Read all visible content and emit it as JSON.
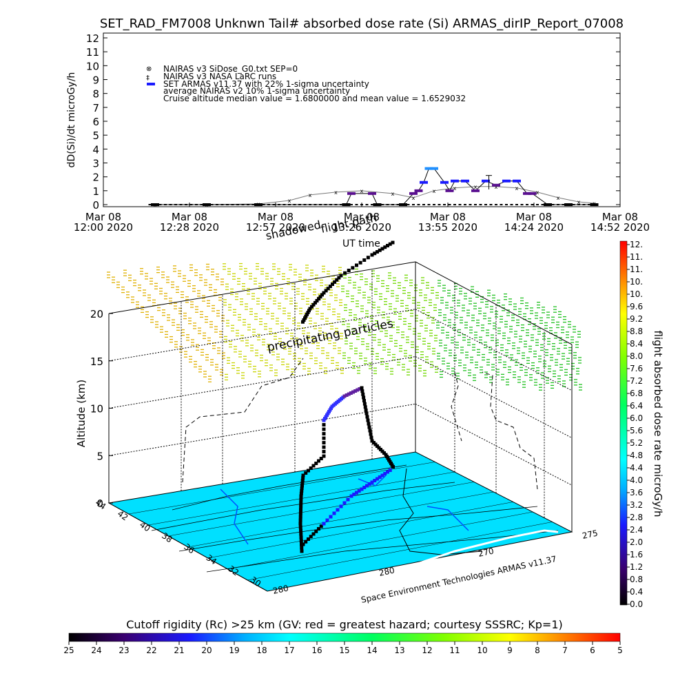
{
  "title": "SET_RAD_FM7008  Unknwn Tail#  absorbed dose rate (Si) ARMAS_dirIP_Report_07008",
  "chart_data": [
    {
      "type": "line",
      "ylabel": "dD(Si)/dt microGy/h",
      "ylim": [
        0,
        12
      ],
      "yticks": [
        "0",
        "1",
        "2",
        "3",
        "4",
        "5",
        "6",
        "7",
        "8",
        "9",
        "10",
        "11",
        "12"
      ],
      "xticks": [
        {
          "d": "Mar 08",
          "t": "12:00 2020"
        },
        {
          "d": "Mar 08",
          "t": "12:28 2020"
        },
        {
          "d": "Mar 08",
          "t": "12:57 2020"
        },
        {
          "d": "Mar 08",
          "t": "13:26 2020"
        },
        {
          "d": "Mar 08",
          "t": "13:55 2020"
        },
        {
          "d": "Mar 08",
          "t": "14:24 2020"
        },
        {
          "d": "Mar 08",
          "t": "14:52 2020"
        }
      ],
      "legend": [
        "NAIRAS v3 SiDose_G0.txt SEP=0",
        "NAIRAS v3 NASA LaRC runs",
        "SET ARMAS v11.37 with 22% 1-sigma uncertainty",
        "average NAIRAS v2 10% 1-sigma uncertainty",
        "Cruise altitude median value =    1.6800000 and mean value =    1.6529032"
      ],
      "series": [
        {
          "name": "NAIRAS v3 SiDose_G0.txt SEP=0",
          "x": [
            0.1,
            0.2,
            0.3,
            0.36,
            0.4,
            0.45,
            0.5,
            0.56,
            0.6,
            0.64,
            0.68,
            0.72,
            0.76,
            0.8,
            0.84,
            0.88,
            0.92,
            0.95
          ],
          "y": [
            0.0,
            0.0,
            0.05,
            0.3,
            0.7,
            0.9,
            1.0,
            0.8,
            0.5,
            1.0,
            1.2,
            1.3,
            1.3,
            1.2,
            0.9,
            0.5,
            0.2,
            0.1
          ]
        },
        {
          "name": "SET ARMAS v11.37 with 22% 1-sigma uncertainty",
          "x": [
            0.1,
            0.2,
            0.3,
            0.47,
            0.48,
            0.52,
            0.53,
            0.58,
            0.6,
            0.61,
            0.62,
            0.63,
            0.64,
            0.66,
            0.67,
            0.68,
            0.7,
            0.72,
            0.74,
            0.76,
            0.78,
            0.8,
            0.82,
            0.83,
            0.86,
            0.9,
            0.95
          ],
          "y": [
            0.0,
            0.0,
            0.0,
            0.0,
            0.8,
            0.8,
            0.0,
            0.0,
            0.8,
            1.0,
            1.6,
            2.6,
            2.6,
            1.6,
            1.0,
            1.7,
            1.7,
            1.0,
            1.7,
            1.4,
            1.7,
            1.7,
            0.8,
            0.8,
            0.0,
            0.0,
            0.0
          ]
        }
      ]
    },
    {
      "type": "scatter",
      "zlabel": "Altitude (km)",
      "zticks": [
        "0",
        "5",
        "10",
        "15",
        "20"
      ],
      "lat_ticks": [
        "44",
        "42",
        "40",
        "38",
        "36",
        "34",
        "32",
        "30"
      ],
      "lon_ticks": [
        "280",
        "280",
        "270",
        "275"
      ],
      "labels": {
        "flight_path": "flight path",
        "shadowed": "shadowed",
        "ut_time": "UT time",
        "precipitating": "precipitating particles",
        "credit": "Space Environment Technologies ARMAS v11.37"
      }
    },
    {
      "type": "heatmap",
      "name": "flight absorbed dose rate microGy/h",
      "ticks": [
        "12.",
        "11.",
        "11.",
        "10.",
        "10.",
        "9.6",
        "9.2",
        "8.8",
        "8.4",
        "8.0",
        "7.6",
        "7.2",
        "6.8",
        "6.4",
        "6.0",
        "5.6",
        "5.2",
        "4.8",
        "4.4",
        "4.0",
        "3.6",
        "3.2",
        "2.8",
        "2.4",
        "2.0",
        "1.6",
        "1.2",
        "0.8",
        "0.4",
        "0.0"
      ]
    },
    {
      "type": "heatmap",
      "name": "Cutoff rigidity (Rc) >25 km (GV: red = greatest hazard; courtesy SSSRC; Kp=1)",
      "ticks": [
        "25",
        "24",
        "23",
        "22",
        "21",
        "20",
        "19",
        "18",
        "17",
        "16",
        "15",
        "14",
        "13",
        "12",
        "11",
        "10",
        "9",
        "8",
        "7",
        "6",
        "5"
      ]
    }
  ]
}
